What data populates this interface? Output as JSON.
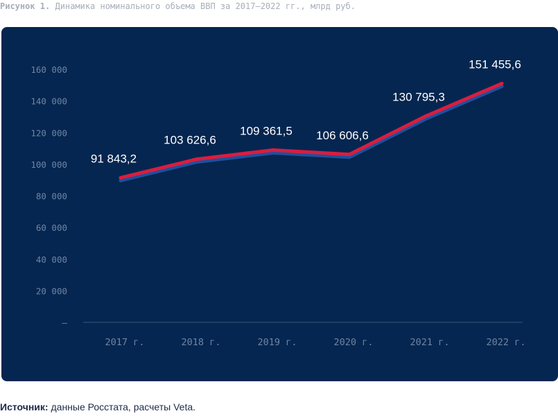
{
  "caption": {
    "prefix": "Рисунок 1.",
    "text": "Динамика номинального объема ВВП за 2017–2022 гг., млрд руб."
  },
  "source": {
    "label": "Источник:",
    "text": "данные Росстата, расчеты Veta."
  },
  "colors": {
    "panel": "#052650",
    "line_main": "#d81e3f",
    "line_shadow": "#1f4f9e",
    "tick_text": "#6f84a3",
    "drop_line": "#d8dee8"
  },
  "chart_data": {
    "type": "line",
    "categories": [
      "2017 г.",
      "2018 г.",
      "2019 г.",
      "2020 г.",
      "2021 г.",
      "2022 г."
    ],
    "values": [
      91843.2,
      103626.6,
      109361.5,
      106606.6,
      130795.3,
      151455.6
    ],
    "value_labels": [
      "91 843,2",
      "103 626,6",
      "109 361,5",
      "106 606,6",
      "130 795,3",
      "151 455,6"
    ],
    "ylim": [
      0,
      160000
    ],
    "yticks": [
      {
        "value": 0,
        "label": "–"
      },
      {
        "value": 20000,
        "label": "20 000"
      },
      {
        "value": 40000,
        "label": "40 000"
      },
      {
        "value": 60000,
        "label": "60 000"
      },
      {
        "value": 80000,
        "label": "80 000"
      },
      {
        "value": 100000,
        "label": "100 000"
      },
      {
        "value": 120000,
        "label": "120 000"
      },
      {
        "value": 140000,
        "label": "140 000"
      },
      {
        "value": 160000,
        "label": "160 000"
      }
    ],
    "grid": false,
    "legend": "none",
    "title": "",
    "xlabel": "",
    "ylabel": ""
  }
}
